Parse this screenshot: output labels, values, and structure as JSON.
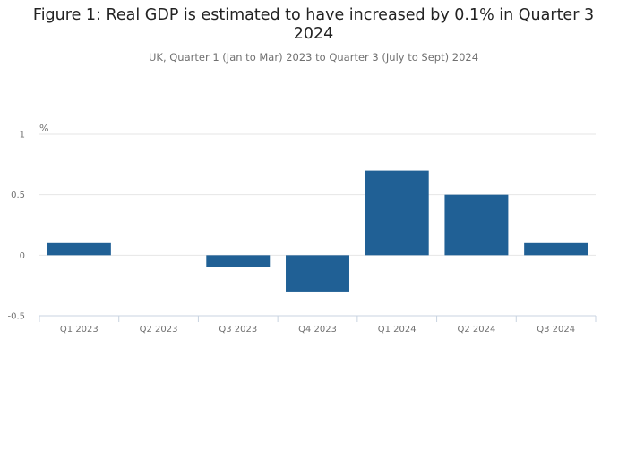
{
  "page": {
    "title": "Figure 1: Real GDP is estimated to have increased by 0.1% in Quarter 3 2024",
    "subtitle": "UK, Quarter 1 (Jan to Mar) 2023 to Quarter 3 (July to Sept) 2024"
  },
  "chart_data": {
    "type": "bar",
    "title": "Figure 1: Real GDP is estimated to have increased by 0.1% in Quarter 3 2024",
    "subtitle": "UK, Quarter 1 (Jan to Mar) 2023 to Quarter 3 (July to Sept) 2024",
    "xlabel": "",
    "ylabel": "%",
    "categories": [
      "Q1 2023",
      "Q2 2023",
      "Q3 2023",
      "Q4 2023",
      "Q1 2024",
      "Q2 2024",
      "Q3 2024"
    ],
    "values": [
      0.1,
      0.0,
      -0.1,
      -0.3,
      0.7,
      0.5,
      0.1
    ],
    "ylim": [
      -0.5,
      1
    ],
    "yticks": [
      -0.5,
      0,
      0.5,
      1
    ],
    "ytick_labels": [
      "-0.5",
      "0",
      "0.5",
      "1"
    ],
    "grid": true,
    "legend": "none",
    "bar_color": "#206095",
    "grid_color": "#e6e6e6",
    "axis_color": "#c8d3e0"
  }
}
